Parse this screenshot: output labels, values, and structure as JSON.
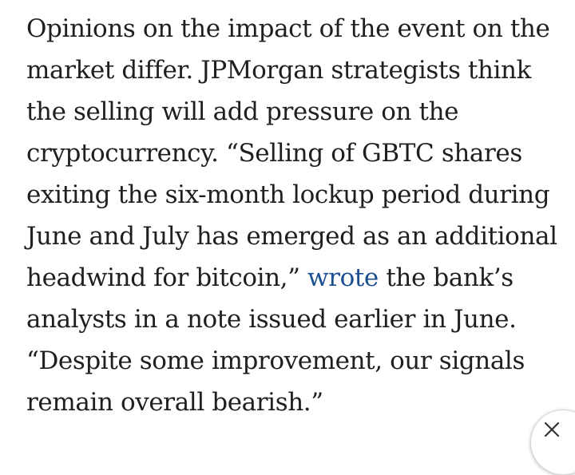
{
  "article": {
    "text_before_link": "Opinions on the impact of the event on the market differ. JPMorgan strategists think the selling will add pressure on the cryptocurrency. “Selling of GBTC shares exiting the six-month lockup period during June and July has emerged as an additional headwind for bitcoin,” ",
    "link_text": "wrote",
    "text_after_link": " the bank’s analysts in a note issued earlier in June. “Despite some improvement, our signals remain overall bearish.”"
  },
  "floating_button": {
    "icon": "close-icon"
  }
}
